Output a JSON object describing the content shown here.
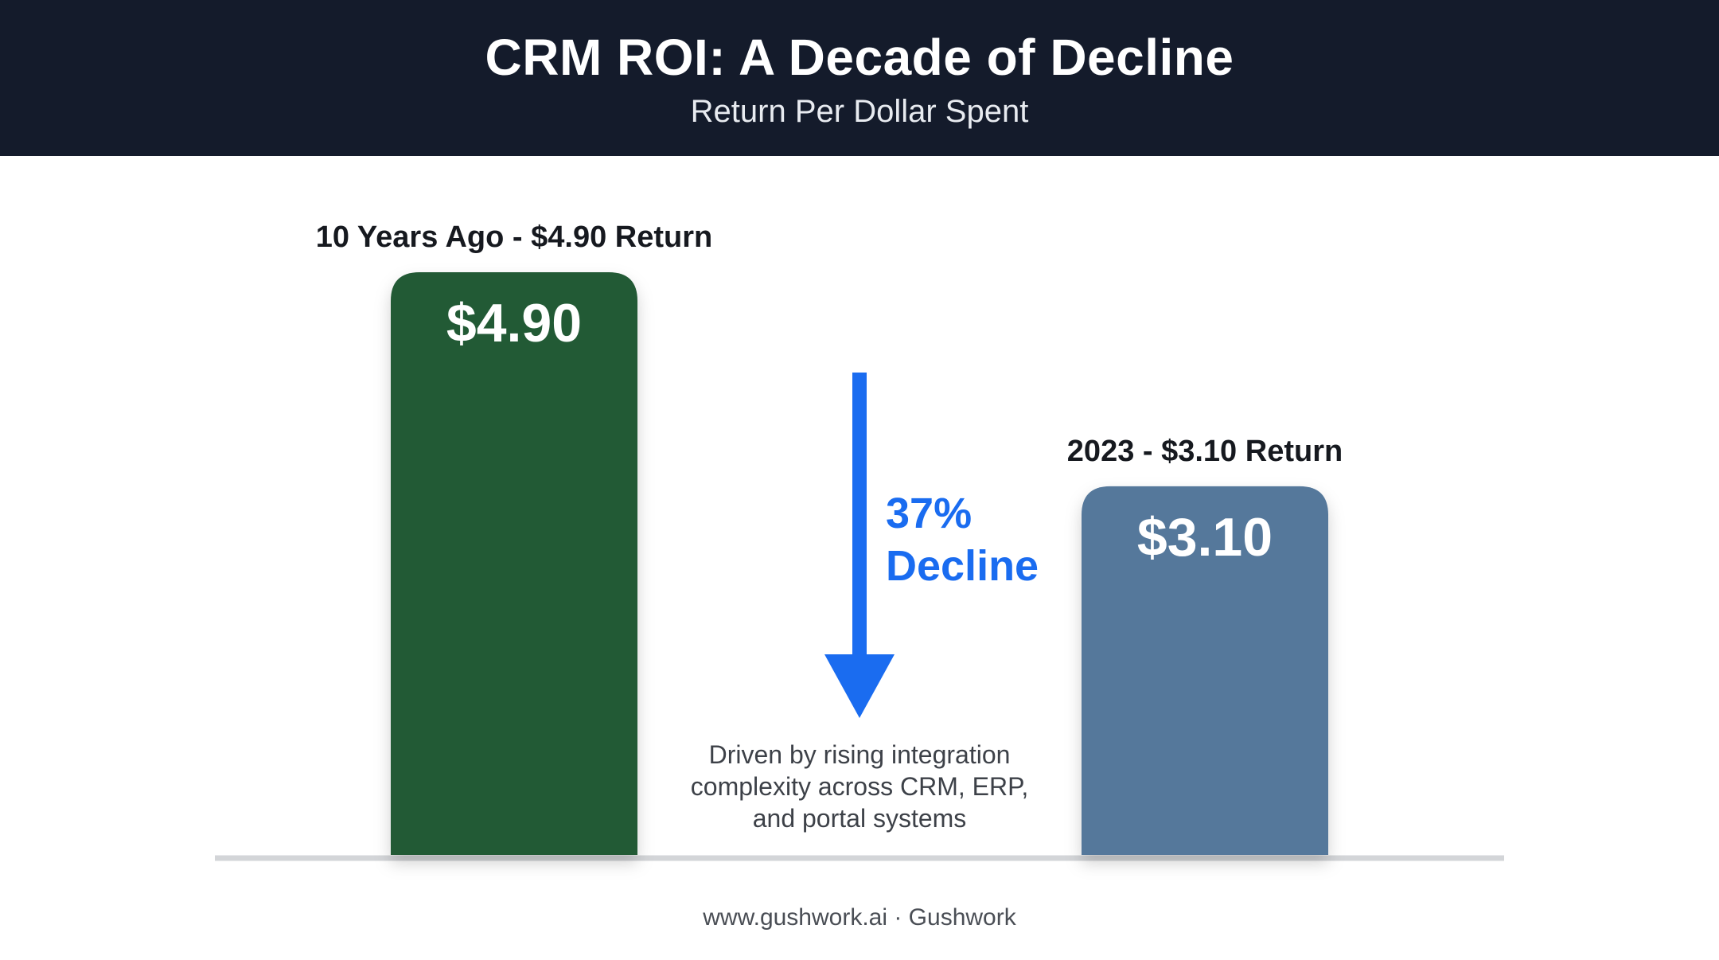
{
  "header": {
    "title": "CRM ROI: A Decade of Decline",
    "subtitle": "Return Per Dollar Spent"
  },
  "chart_data": {
    "type": "bar",
    "title": "CRM ROI: A Decade of Decline",
    "subtitle": "Return Per Dollar Spent",
    "categories": [
      "10 Years Ago - $4.90 Return",
      "2023 - $3.10 Return"
    ],
    "values": [
      4.9,
      3.1
    ],
    "data_labels": [
      "$4.90",
      "$3.10"
    ],
    "colors": [
      "#245a35",
      "#55789b"
    ],
    "ylim": [
      0,
      4.9
    ],
    "grid": false,
    "annotation": {
      "text_line1": "37%",
      "text_line2": "Decline",
      "color": "#1a6cf0",
      "note": "Driven by rising integration\ncomplexity across CRM, ERP,\nand portal systems"
    }
  },
  "footer": {
    "text": "www.gushwork.ai · Gushwork"
  }
}
